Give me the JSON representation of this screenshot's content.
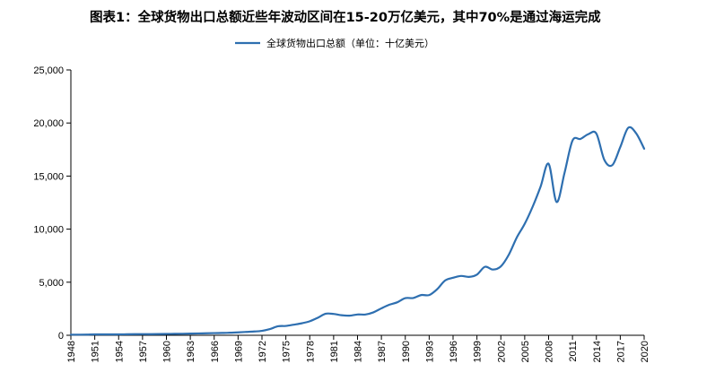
{
  "title": "图表1：全球货物出口总额近些年波动区间在15-20万亿美元，其中70%是通过海运完成",
  "chart_data": {
    "type": "line",
    "title": "图表1：全球货物出口总额近些年波动区间在15-20万亿美元，其中70%是通过海运完成",
    "legend_position": "top-center",
    "grid": false,
    "xlabel": "",
    "ylabel": "",
    "xlim": [
      1948,
      2020
    ],
    "ylim": [
      0,
      25000
    ],
    "y_ticks": [
      "0",
      "5,000",
      "10,000",
      "15,000",
      "20,000",
      "25,000"
    ],
    "x_ticks": [
      "1948",
      "1951",
      "1954",
      "1957",
      "1960",
      "1963",
      "1966",
      "1969",
      "1972",
      "1975",
      "1978",
      "1981",
      "1984",
      "1987",
      "1990",
      "1993",
      "1996",
      "1999",
      "2002",
      "2005",
      "2008",
      "2011",
      "2014",
      "2017",
      "2020"
    ],
    "series": [
      {
        "name": "全球货物出口总额（单位：十亿美元）",
        "color": "#2e6fb0",
        "x": [
          1948,
          1949,
          1950,
          1951,
          1952,
          1953,
          1954,
          1955,
          1956,
          1957,
          1958,
          1959,
          1960,
          1961,
          1962,
          1963,
          1964,
          1965,
          1966,
          1967,
          1968,
          1969,
          1970,
          1971,
          1972,
          1973,
          1974,
          1975,
          1976,
          1977,
          1978,
          1979,
          1980,
          1981,
          1982,
          1983,
          1984,
          1985,
          1986,
          1987,
          1988,
          1989,
          1990,
          1991,
          1992,
          1993,
          1994,
          1995,
          1996,
          1997,
          1998,
          1999,
          2000,
          2001,
          2002,
          2003,
          2004,
          2005,
          2006,
          2007,
          2008,
          2009,
          2010,
          2011,
          2012,
          2013,
          2014,
          2015,
          2016,
          2017,
          2018,
          2019,
          2020
        ],
        "values": [
          59,
          58,
          62,
          84,
          82,
          84,
          86,
          94,
          104,
          112,
          108,
          115,
          130,
          134,
          142,
          157,
          175,
          190,
          208,
          220,
          240,
          276,
          318,
          356,
          418,
          582,
          847,
          882,
          1000,
          1130,
          1320,
          1650,
          2030,
          2010,
          1890,
          1850,
          1960,
          1960,
          2160,
          2540,
          2880,
          3110,
          3500,
          3510,
          3790,
          3790,
          4340,
          5160,
          5420,
          5590,
          5500,
          5720,
          6450,
          6190,
          6490,
          7590,
          9210,
          10500,
          12120,
          14020,
          16160,
          12560,
          15300,
          18340,
          18500,
          18950,
          19000,
          16520,
          16030,
          17730,
          19550,
          19020,
          17580
        ]
      }
    ]
  }
}
